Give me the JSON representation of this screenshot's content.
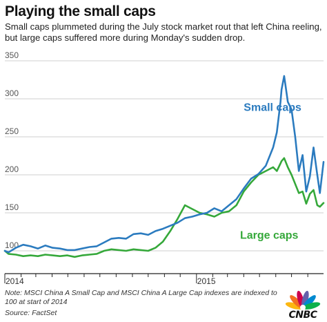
{
  "header": {
    "title": "Playing the small caps",
    "subtitle": "Small caps plummeted during the July stock market rout that left China reeling, but large caps suffered more during Monday's sudden drop."
  },
  "footer": {
    "note": "Note: MSCI China A Small Cap and MSCI China A Large Cap indexes are indexed to 100 at start of 2014",
    "source": "Source: FactSet"
  },
  "logo": {
    "name": "nbc-peacock-logo",
    "text": "CNBC"
  },
  "colors": {
    "small_caps": "#2b7bbf",
    "large_caps": "#35a83a",
    "grid": "#cfcfcf"
  },
  "chart_data": {
    "type": "line",
    "title": "Playing the small caps",
    "xlabel": "",
    "ylabel": "",
    "ylim": [
      70,
      350
    ],
    "yticks": [
      100,
      150,
      200,
      250,
      300,
      350
    ],
    "xlim": [
      "2014-01-01",
      "2015-08-31"
    ],
    "xticks": [
      {
        "x": "2014-01-01",
        "label": "2014"
      },
      {
        "x": "2015-01-01",
        "label": "2015"
      }
    ],
    "grid": true,
    "legend": "inline labels",
    "series": [
      {
        "name": "Small caps",
        "color": "#2b7bbf",
        "x": [
          "2014-01-01",
          "2014-01-08",
          "2014-01-22",
          "2014-02-05",
          "2014-02-19",
          "2014-03-05",
          "2014-03-19",
          "2014-04-02",
          "2014-04-16",
          "2014-04-30",
          "2014-05-14",
          "2014-05-28",
          "2014-06-11",
          "2014-06-25",
          "2014-07-09",
          "2014-07-23",
          "2014-08-06",
          "2014-08-20",
          "2014-09-03",
          "2014-09-17",
          "2014-10-01",
          "2014-10-15",
          "2014-10-29",
          "2014-11-12",
          "2014-11-26",
          "2014-12-10",
          "2014-12-24",
          "2015-01-07",
          "2015-01-21",
          "2015-02-04",
          "2015-02-18",
          "2015-03-04",
          "2015-03-18",
          "2015-04-01",
          "2015-04-15",
          "2015-04-29",
          "2015-05-13",
          "2015-05-27",
          "2015-06-03",
          "2015-06-10",
          "2015-06-12",
          "2015-06-17",
          "2015-06-24",
          "2015-07-01",
          "2015-07-08",
          "2015-07-15",
          "2015-07-22",
          "2015-07-29",
          "2015-08-05",
          "2015-08-12",
          "2015-08-19",
          "2015-08-24",
          "2015-08-31"
        ],
        "values": [
          100,
          98,
          104,
          108,
          106,
          103,
          107,
          104,
          103,
          101,
          101,
          103,
          105,
          106,
          111,
          116,
          117,
          116,
          122,
          123,
          121,
          126,
          129,
          133,
          137,
          143,
          145,
          148,
          150,
          156,
          152,
          160,
          168,
          182,
          195,
          201,
          212,
          236,
          256,
          296,
          312,
          330,
          296,
          286,
          250,
          205,
          226,
          178,
          198,
          236,
          200,
          176,
          217
        ]
      },
      {
        "name": "Large caps",
        "color": "#35a83a",
        "x": [
          "2014-01-01",
          "2014-01-08",
          "2014-01-22",
          "2014-02-05",
          "2014-02-19",
          "2014-03-05",
          "2014-03-19",
          "2014-04-02",
          "2014-04-16",
          "2014-04-30",
          "2014-05-14",
          "2014-05-28",
          "2014-06-11",
          "2014-06-25",
          "2014-07-09",
          "2014-07-23",
          "2014-08-06",
          "2014-08-20",
          "2014-09-03",
          "2014-09-17",
          "2014-10-01",
          "2014-10-15",
          "2014-10-29",
          "2014-11-12",
          "2014-11-26",
          "2014-12-10",
          "2014-12-24",
          "2015-01-07",
          "2015-01-21",
          "2015-02-04",
          "2015-02-18",
          "2015-03-04",
          "2015-03-18",
          "2015-04-01",
          "2015-04-15",
          "2015-04-29",
          "2015-05-13",
          "2015-05-27",
          "2015-06-03",
          "2015-06-10",
          "2015-06-12",
          "2015-06-17",
          "2015-06-24",
          "2015-07-01",
          "2015-07-08",
          "2015-07-15",
          "2015-07-22",
          "2015-07-29",
          "2015-08-05",
          "2015-08-12",
          "2015-08-19",
          "2015-08-24",
          "2015-08-31"
        ],
        "values": [
          100,
          96,
          95,
          93,
          94,
          93,
          95,
          94,
          93,
          94,
          92,
          94,
          95,
          96,
          100,
          102,
          101,
          100,
          102,
          101,
          100,
          104,
          112,
          126,
          142,
          160,
          155,
          150,
          148,
          145,
          150,
          152,
          160,
          178,
          190,
          200,
          205,
          210,
          205,
          215,
          218,
          222,
          210,
          200,
          188,
          176,
          178,
          162,
          175,
          180,
          160,
          158,
          163
        ]
      }
    ],
    "annotations": [
      {
        "text": "Small caps",
        "series": "Small caps"
      },
      {
        "text": "Large caps",
        "series": "Large caps"
      }
    ]
  }
}
